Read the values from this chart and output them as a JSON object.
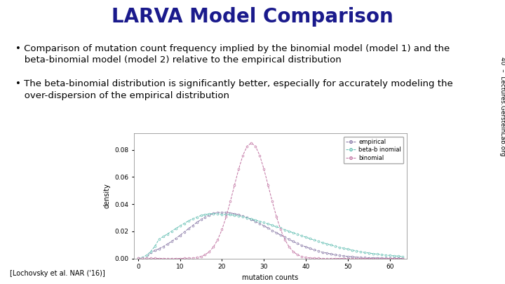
{
  "title": "LARVA Model Comparison",
  "title_fontsize": 20,
  "title_color": "#1a1a8c",
  "bullet1_line1": "• Comparison of mutation count frequency implied by the binomial model (model 1) and the",
  "bullet1_line2": "   beta-binomial model (model 2) relative to the empirical distribution",
  "bullet2_line1": "• The beta-binomial distribution is significantly better, especially for accurately modeling the",
  "bullet2_line2": "   over-dispersion of the empirical distribution",
  "bullet_fontsize": 9.5,
  "footer_left": "[Lochovsky et al. NAR ('16)]",
  "footer_right": "40  –  Lectures.GersteinLab.org",
  "xlabel": "mutation counts",
  "ylabel": "density",
  "ytick_labels": [
    "0.00",
    "0.02",
    "0.04",
    "0.06",
    "0.08"
  ],
  "yticks": [
    0.0,
    0.02,
    0.04,
    0.06,
    0.08
  ],
  "xticks": [
    0,
    10,
    20,
    30,
    40,
    50,
    60
  ],
  "xlim": [
    -1,
    64
  ],
  "ylim": [
    0.0,
    0.092
  ],
  "legend_labels": [
    "empirical",
    "beta-b inomial",
    "binomial"
  ],
  "empirical_color": "#8070a0",
  "beta_binom_color": "#5dbcb0",
  "binomial_color": "#c070a0",
  "background_color": "#ffffff",
  "plot_bg_color": "#ffffff"
}
